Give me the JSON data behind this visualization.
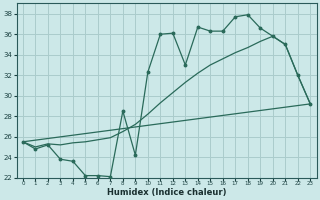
{
  "bg_color": "#cce8e8",
  "grid_color": "#aacccc",
  "line_color": "#2a6a5a",
  "x_label": "Humidex (Indice chaleur)",
  "ylim": [
    22,
    39
  ],
  "xlim": [
    -0.5,
    23.5
  ],
  "yticks": [
    22,
    24,
    26,
    28,
    30,
    32,
    34,
    36,
    38
  ],
  "xticks": [
    0,
    1,
    2,
    3,
    4,
    5,
    6,
    7,
    8,
    9,
    10,
    11,
    12,
    13,
    14,
    15,
    16,
    17,
    18,
    19,
    20,
    21,
    22,
    23
  ],
  "line1_x": [
    0,
    1,
    2,
    3,
    4,
    5,
    6,
    7,
    8,
    9,
    10,
    11,
    12,
    13,
    14,
    15,
    16,
    17,
    18,
    19,
    20,
    21,
    22,
    23
  ],
  "line1_y": [
    25.5,
    24.8,
    25.2,
    23.8,
    23.6,
    22.2,
    22.2,
    22.1,
    28.5,
    24.2,
    32.3,
    36.0,
    36.1,
    33.0,
    36.7,
    36.3,
    36.3,
    37.7,
    37.9,
    36.6,
    35.8,
    35.0,
    32.0,
    29.2
  ],
  "line2_x": [
    0,
    1,
    2,
    3,
    4,
    5,
    6,
    7,
    8,
    9,
    10,
    11,
    12,
    13,
    14,
    15,
    16,
    17,
    18,
    19,
    20,
    21,
    22,
    23
  ],
  "line2_y": [
    25.5,
    25.0,
    25.3,
    25.2,
    25.4,
    25.5,
    25.7,
    25.9,
    26.5,
    27.2,
    28.2,
    29.3,
    30.3,
    31.3,
    32.2,
    33.0,
    33.6,
    34.2,
    34.7,
    35.3,
    35.8,
    35.0,
    32.0,
    29.2
  ],
  "line3_x": [
    0,
    23
  ],
  "line3_y": [
    25.5,
    29.2
  ]
}
